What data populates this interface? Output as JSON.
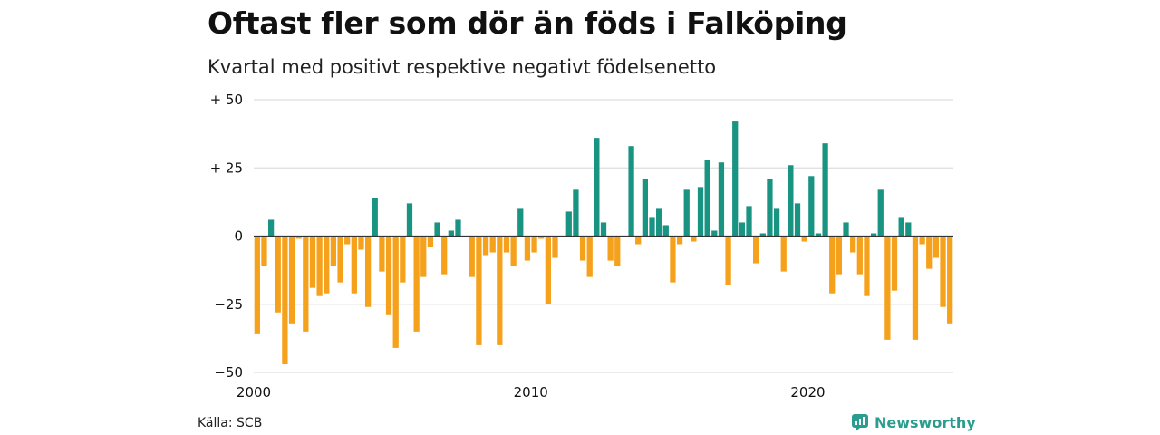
{
  "title": "Oftast fler som dör än föds i Falköping",
  "subtitle": "Kvartal med positivt respektive negativt födelsenetto",
  "source": "Källa: SCB",
  "brand": {
    "name": "Newsworthy",
    "icon": "newsworthy-chart-icon"
  },
  "colors": {
    "positive": "#1a9482",
    "negative": "#f5a11c",
    "grid": "#dddddd",
    "zero": "#333333",
    "brand": "#2a9d8f"
  },
  "chart_data": {
    "type": "bar",
    "title": "Oftast fler som dör än föds i Falköping",
    "subtitle": "Kvartal med positivt respektive negativt födelsenetto",
    "xlabel": "",
    "ylabel": "",
    "x_start": 2000,
    "x_end": 2025.25,
    "x_ticks": [
      {
        "value": 2000,
        "label": "2000"
      },
      {
        "value": 2010,
        "label": "2010"
      },
      {
        "value": 2020,
        "label": "2020"
      }
    ],
    "ylim": [
      -50,
      50
    ],
    "y_ticks": [
      {
        "value": 50,
        "label": "+ 50"
      },
      {
        "value": 25,
        "label": "+ 25"
      },
      {
        "value": 0,
        "label": "0"
      },
      {
        "value": -25,
        "label": "−25"
      },
      {
        "value": -50,
        "label": "−50"
      }
    ],
    "grid": true,
    "legend": "none",
    "values": [
      -36,
      -11,
      6,
      -28,
      -47,
      -32,
      -1,
      -35,
      -19,
      -22,
      -21,
      -11,
      -17,
      -3,
      -21,
      -5,
      -26,
      14,
      -13,
      -29,
      -41,
      -17,
      12,
      -35,
      -15,
      -4,
      5,
      -14,
      2,
      6,
      0,
      -15,
      -40,
      -7,
      -6,
      -40,
      -6,
      -11,
      10,
      -9,
      -6,
      -1,
      -25,
      -8,
      0,
      9,
      17,
      -9,
      -15,
      36,
      5,
      -9,
      -11,
      0,
      33,
      -3,
      21,
      7,
      10,
      4,
      -17,
      -3,
      17,
      -2,
      18,
      28,
      2,
      27,
      -18,
      42,
      5,
      11,
      -10,
      1,
      21,
      10,
      -13,
      26,
      12,
      -2,
      22,
      1,
      34,
      -21,
      -14,
      5,
      -6,
      -14,
      -22,
      1,
      17,
      -38,
      -20,
      7,
      5,
      -38,
      -3,
      -12,
      -8,
      -26,
      -32
    ]
  }
}
